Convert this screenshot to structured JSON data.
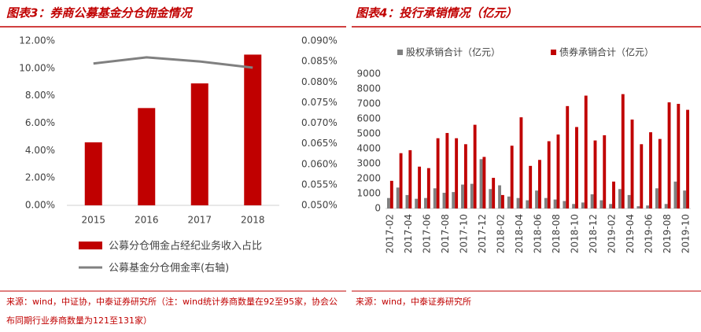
{
  "chart_data": [
    {
      "type": "bar_line",
      "title": "图表3：券商公募基金分仓佣金情况",
      "categories": [
        "2015",
        "2016",
        "2017",
        "2018"
      ],
      "series": [
        {
          "name": "公募分仓佣金占经纪业务收入占比",
          "color": "#c00000",
          "values": [
            4.6,
            7.1,
            8.9,
            11.0
          ]
        },
        {
          "name": "公募基金分仓佣金率(右轴)",
          "color": "#808080",
          "axis": "y2",
          "values": [
            0.0845,
            0.086,
            0.085,
            0.0835
          ]
        }
      ],
      "ylim": [
        0,
        12
      ],
      "yticks": [
        {
          "value": 0,
          "label": "0.00%"
        },
        {
          "value": 2,
          "label": "2.00%"
        },
        {
          "value": 4,
          "label": "4.00%"
        },
        {
          "value": 6,
          "label": "6.00%"
        },
        {
          "value": 8,
          "label": "8.00%"
        },
        {
          "value": 10,
          "label": "10.00%"
        },
        {
          "value": 12,
          "label": "12.00%"
        }
      ],
      "y2lim": [
        0.05,
        0.09
      ],
      "y2ticks": [
        {
          "value": 0.05,
          "label": "0.050%"
        },
        {
          "value": 0.055,
          "label": "0.055%"
        },
        {
          "value": 0.06,
          "label": "0.060%"
        },
        {
          "value": 0.065,
          "label": "0.065%"
        },
        {
          "value": 0.07,
          "label": "0.070%"
        },
        {
          "value": 0.075,
          "label": "0.075%"
        },
        {
          "value": 0.08,
          "label": "0.080%"
        },
        {
          "value": 0.085,
          "label": "0.085%"
        },
        {
          "value": 0.09,
          "label": "0.090%"
        }
      ],
      "source": "来源：wind，中证协，中泰证券研究所（注：wind统计券商数量在92至95家，协会公布同期行业券商数量为121至131家）"
    },
    {
      "type": "bar",
      "title": "图表4：投行承销情况（亿元）",
      "categories": [
        "2017-02",
        null,
        "2017-04",
        null,
        "2017-06",
        null,
        "2017-08",
        null,
        "2017-10",
        null,
        "2017-12",
        null,
        "2018-02",
        null,
        "2018-04",
        null,
        "2018-06",
        null,
        "2018-08",
        null,
        "2018-10",
        null,
        "2018-12",
        null,
        "2019-02",
        null,
        "2019-04",
        null,
        "2019-06",
        null,
        "2019-08",
        null,
        "2019-10"
      ],
      "series": [
        {
          "name": "股权承销合计（亿元）",
          "color": "#808080",
          "values": [
            700,
            1400,
            900,
            650,
            700,
            1350,
            1050,
            1100,
            1600,
            1650,
            3300,
            1300,
            1550,
            800,
            700,
            550,
            1200,
            700,
            600,
            500,
            300,
            400,
            950,
            550,
            300,
            1300,
            900,
            150,
            200,
            1350,
            300,
            1800,
            1200
          ]
        },
        {
          "name": "债券承销合计（亿元）",
          "color": "#c00000",
          "values": [
            1850,
            3700,
            3900,
            2800,
            2700,
            4700,
            5050,
            4700,
            4300,
            5600,
            3450,
            2050,
            900,
            4200,
            6100,
            2850,
            3250,
            4500,
            4950,
            6850,
            5450,
            7550,
            4550,
            4900,
            1800,
            7650,
            5950,
            4300,
            5100,
            4650,
            7100,
            7000,
            6600
          ]
        }
      ],
      "ylim": [
        0,
        9000
      ],
      "yticks": [
        0,
        1000,
        2000,
        3000,
        4000,
        5000,
        6000,
        7000,
        8000,
        9000
      ],
      "source": "来源：wind，中泰证券研究所"
    }
  ]
}
